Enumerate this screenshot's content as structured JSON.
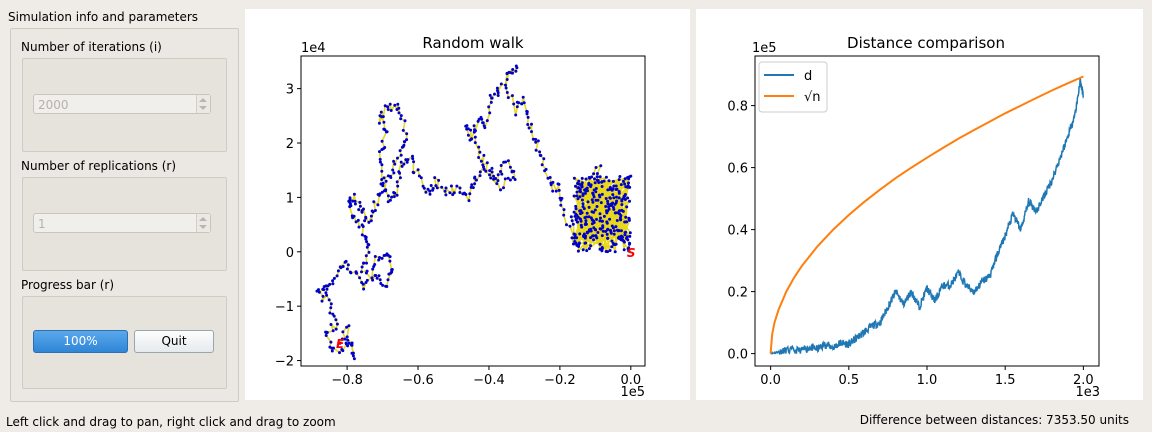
{
  "sidebar": {
    "title": "Simulation info and parameters",
    "iterations_label": "Number of iterations (i)",
    "iterations_value": "2000",
    "replications_label": "Number of replications (r)",
    "replications_value": "1",
    "progress_label": "Progress bar (r)",
    "progress_text": "100%",
    "progress_value": 1.0,
    "quit_label": "Quit"
  },
  "status": {
    "left": "Left click and drag to pan, right click and drag to zoom",
    "right": "Difference between distances: 7353.50 units"
  },
  "chart_data": [
    {
      "type": "line",
      "title": "Random walk",
      "x_offset_label": "1e5",
      "y_offset_label": "1e4",
      "xlim": [
        -0.93,
        0.04
      ],
      "ylim": [
        -2.1,
        3.6
      ],
      "x_ticks": [
        -0.8,
        -0.6,
        -0.4,
        -0.2,
        0.0
      ],
      "x_tick_labels": [
        "−0.8",
        "−0.6",
        "−0.4",
        "−0.2",
        "0.0"
      ],
      "y_ticks": [
        -2,
        -1,
        0,
        1,
        2,
        3
      ],
      "y_tick_labels": [
        "−2",
        "−1",
        "0",
        "1",
        "2",
        "3"
      ],
      "start_label": "S",
      "end_label": "E",
      "start_point": [
        0.0,
        0.0
      ],
      "end_point": [
        -0.82,
        -1.68
      ],
      "line_color": "#e8d81c",
      "marker_color": "#0000cc",
      "label_color": "#ff0000",
      "path": [
        [
          0.0,
          0.0
        ],
        [
          -0.02,
          0.4
        ],
        [
          -0.05,
          0.1
        ],
        [
          -0.08,
          0.6
        ],
        [
          -0.11,
          0.3
        ],
        [
          -0.14,
          1.1
        ],
        [
          -0.09,
          1.6
        ],
        [
          -0.13,
          0.9
        ],
        [
          -0.17,
          0.5
        ],
        [
          -0.15,
          0.1
        ],
        [
          -0.19,
          0.7
        ],
        [
          -0.2,
          1.2
        ],
        [
          -0.23,
          1.2
        ],
        [
          -0.25,
          1.7
        ],
        [
          -0.27,
          2.0
        ],
        [
          -0.29,
          2.4
        ],
        [
          -0.3,
          2.8
        ],
        [
          -0.33,
          2.6
        ],
        [
          -0.35,
          3.2
        ],
        [
          -0.32,
          3.4
        ],
        [
          -0.37,
          3.0
        ],
        [
          -0.39,
          2.9
        ],
        [
          -0.41,
          2.3
        ],
        [
          -0.43,
          2.4
        ],
        [
          -0.45,
          2.1
        ],
        [
          -0.47,
          2.35
        ],
        [
          -0.43,
          1.9
        ],
        [
          -0.41,
          1.6
        ],
        [
          -0.38,
          1.3
        ],
        [
          -0.35,
          1.7
        ],
        [
          -0.33,
          1.4
        ],
        [
          -0.37,
          1.2
        ],
        [
          -0.41,
          1.6
        ],
        [
          -0.44,
          1.3
        ],
        [
          -0.46,
          1.0
        ],
        [
          -0.48,
          1.2
        ],
        [
          -0.52,
          1.1
        ],
        [
          -0.55,
          1.3
        ],
        [
          -0.57,
          1.0
        ],
        [
          -0.6,
          1.4
        ],
        [
          -0.62,
          1.7
        ],
        [
          -0.65,
          1.6
        ],
        [
          -0.66,
          1.1
        ],
        [
          -0.68,
          1.0
        ],
        [
          -0.7,
          1.3
        ],
        [
          -0.71,
          1.8
        ],
        [
          -0.69,
          2.2
        ],
        [
          -0.71,
          2.5
        ],
        [
          -0.68,
          2.7
        ],
        [
          -0.65,
          2.6
        ],
        [
          -0.63,
          2.1
        ],
        [
          -0.65,
          1.8
        ],
        [
          -0.67,
          1.5
        ],
        [
          -0.7,
          1.2
        ],
        [
          -0.72,
          0.9
        ],
        [
          -0.74,
          0.5
        ],
        [
          -0.76,
          0.8
        ],
        [
          -0.78,
          1.0
        ],
        [
          -0.8,
          0.9
        ],
        [
          -0.77,
          0.6
        ],
        [
          -0.75,
          0.3
        ],
        [
          -0.74,
          0.0
        ],
        [
          -0.76,
          -0.3
        ],
        [
          -0.72,
          -0.5
        ],
        [
          -0.69,
          -0.6
        ],
        [
          -0.67,
          -0.3
        ],
        [
          -0.69,
          0.0
        ],
        [
          -0.72,
          -0.2
        ],
        [
          -0.75,
          -0.6
        ],
        [
          -0.78,
          -0.4
        ],
        [
          -0.81,
          -0.2
        ],
        [
          -0.83,
          -0.5
        ],
        [
          -0.86,
          -0.7
        ],
        [
          -0.88,
          -0.65
        ],
        [
          -0.85,
          -1.0
        ],
        [
          -0.83,
          -1.3
        ],
        [
          -0.86,
          -1.5
        ],
        [
          -0.84,
          -1.8
        ],
        [
          -0.8,
          -1.7
        ],
        [
          -0.78,
          -1.9
        ],
        [
          -0.8,
          -1.4
        ],
        [
          -0.82,
          -1.68
        ]
      ]
    },
    {
      "type": "line",
      "title": "Distance comparison",
      "x_offset_label": "1e3",
      "y_offset_label": "1e5",
      "xlim": [
        -0.1,
        2.1
      ],
      "ylim": [
        -0.04,
        0.96
      ],
      "x_ticks": [
        0.0,
        0.5,
        1.0,
        1.5,
        2.0
      ],
      "x_tick_labels": [
        "0.0",
        "0.5",
        "1.0",
        "1.5",
        "2.0"
      ],
      "y_ticks": [
        0.0,
        0.2,
        0.4,
        0.6,
        0.8
      ],
      "y_tick_labels": [
        "0.0",
        "0.2",
        "0.4",
        "0.6",
        "0.8"
      ],
      "legend_placement": "upper-left",
      "series": [
        {
          "name": "d",
          "color": "#1f77b4",
          "x": [
            0.0,
            0.05,
            0.1,
            0.2,
            0.25,
            0.3,
            0.35,
            0.4,
            0.45,
            0.5,
            0.55,
            0.6,
            0.65,
            0.7,
            0.75,
            0.8,
            0.85,
            0.9,
            0.95,
            1.0,
            1.05,
            1.1,
            1.15,
            1.2,
            1.25,
            1.3,
            1.35,
            1.4,
            1.45,
            1.5,
            1.55,
            1.6,
            1.65,
            1.7,
            1.75,
            1.8,
            1.85,
            1.9,
            1.95,
            1.98,
            2.0
          ],
          "y": [
            0.0,
            0.005,
            0.01,
            0.01,
            0.02,
            0.015,
            0.03,
            0.02,
            0.035,
            0.03,
            0.05,
            0.07,
            0.09,
            0.1,
            0.15,
            0.2,
            0.16,
            0.2,
            0.15,
            0.21,
            0.17,
            0.22,
            0.22,
            0.26,
            0.22,
            0.2,
            0.23,
            0.25,
            0.32,
            0.38,
            0.45,
            0.4,
            0.49,
            0.46,
            0.51,
            0.56,
            0.63,
            0.7,
            0.78,
            0.88,
            0.83
          ]
        },
        {
          "name": "√n",
          "color": "#ff7f0e",
          "x": [
            0.0,
            0.01,
            0.025,
            0.05,
            0.1,
            0.15,
            0.2,
            0.3,
            0.4,
            0.5,
            0.6,
            0.7,
            0.8,
            0.9,
            1.0,
            1.1,
            1.2,
            1.3,
            1.4,
            1.5,
            1.6,
            1.7,
            1.8,
            1.9,
            2.0
          ],
          "y": [
            0.0,
            0.063,
            0.1,
            0.141,
            0.2,
            0.245,
            0.283,
            0.346,
            0.4,
            0.447,
            0.49,
            0.529,
            0.566,
            0.6,
            0.632,
            0.663,
            0.693,
            0.721,
            0.748,
            0.775,
            0.8,
            0.825,
            0.849,
            0.872,
            0.894
          ]
        }
      ]
    }
  ]
}
